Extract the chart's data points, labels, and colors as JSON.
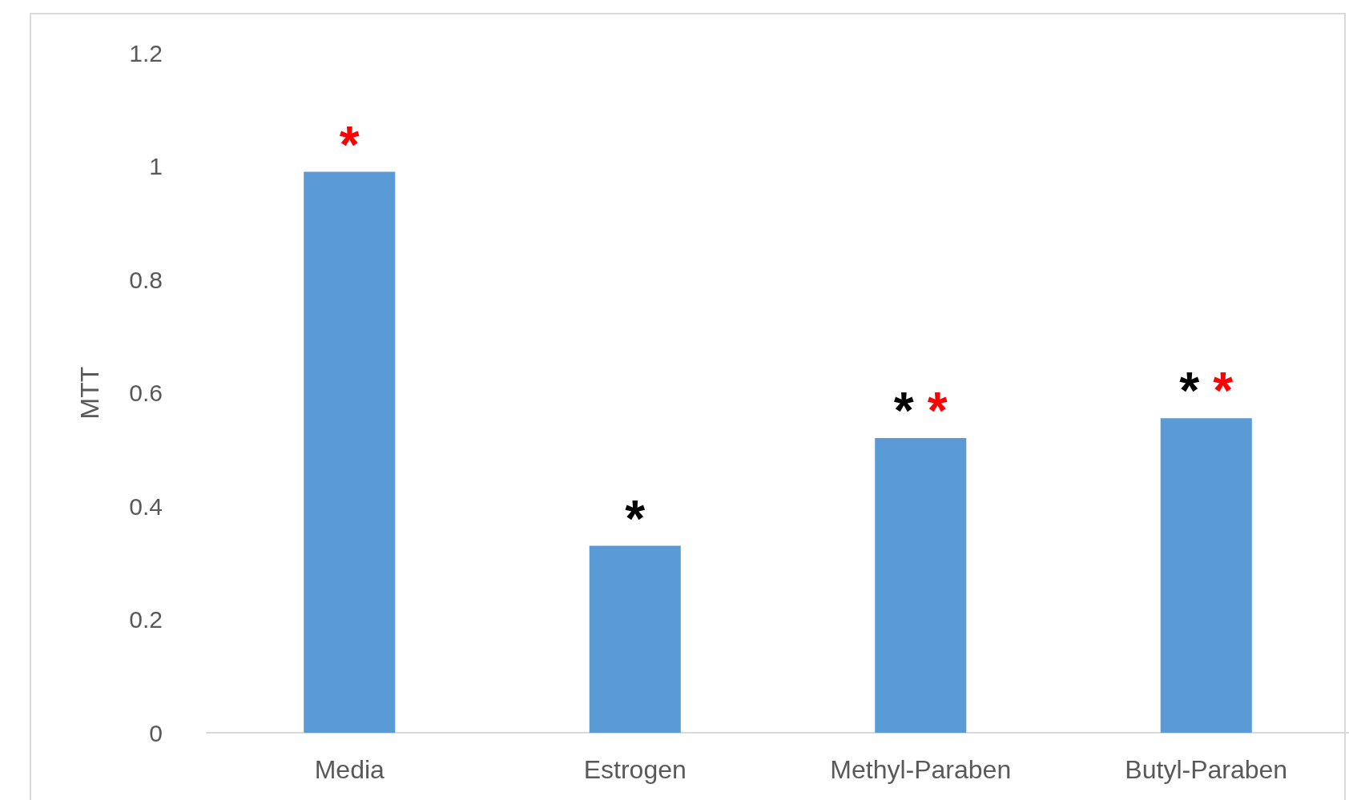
{
  "chart_data": {
    "type": "bar",
    "ylabel": "MTT",
    "categories": [
      "Media",
      "Estrogen",
      "Methyl-Paraben",
      "Butyl-Paraben"
    ],
    "values": [
      0.99,
      0.33,
      0.52,
      0.555
    ],
    "color": "#5b9bd5",
    "ylim": [
      0,
      1.2
    ],
    "yticks": [
      0,
      0.2,
      0.4,
      0.6,
      0.8,
      1,
      1.2
    ],
    "grid": false,
    "annotations": [
      {
        "text": "*",
        "x": "Media",
        "y": 0.99
      },
      {
        "text": "*",
        "x": "Estrogen",
        "y": 0.33
      },
      {
        "text": "*",
        "x": "Methyl-Paraben",
        "y": 0.52
      },
      {
        "text": "*",
        "x": "Methyl-Paraben",
        "y": 0.52
      },
      {
        "text": "*",
        "x": "Butyl-Paraben",
        "y": 0.555
      },
      {
        "text": "*",
        "x": "Butyl-Paraben",
        "y": 0.555
      }
    ]
  }
}
